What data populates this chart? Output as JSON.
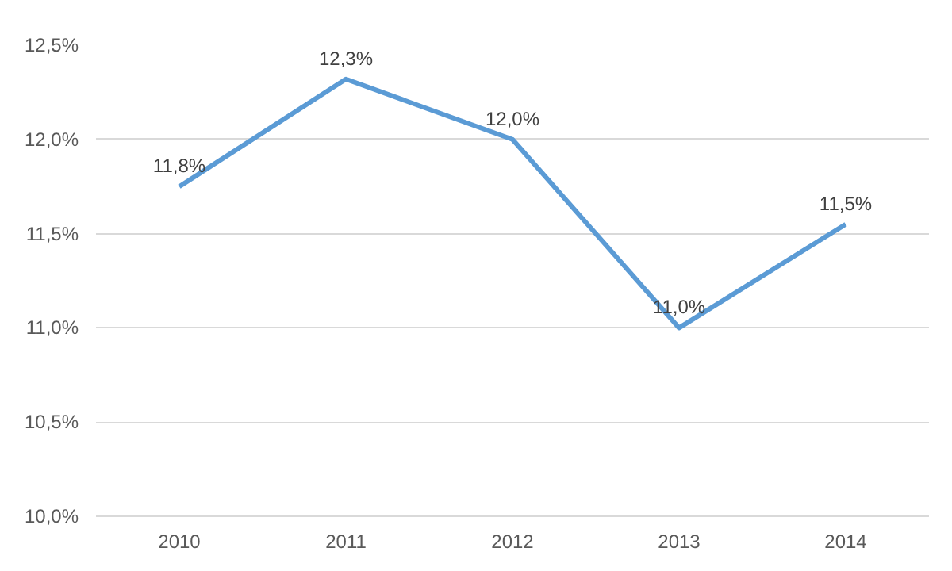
{
  "chart_data": {
    "type": "line",
    "categories": [
      "2010",
      "2011",
      "2012",
      "2013",
      "2014"
    ],
    "series": [
      {
        "color": "#5b9bd5",
        "values": [
          11.75,
          12.32,
          12.0,
          11.0,
          11.55
        ],
        "value_labels": [
          "11,8%",
          "12,3%",
          "12,0%",
          "11,0%",
          "11,5%"
        ]
      }
    ],
    "ylim": [
      10.0,
      12.5
    ],
    "yticks": [
      {
        "value": 10.0,
        "label": "10,0%"
      },
      {
        "value": 10.5,
        "label": "10,5%"
      },
      {
        "value": 11.0,
        "label": "11,0%"
      },
      {
        "value": 11.5,
        "label": "11,5%"
      },
      {
        "value": 12.0,
        "label": "12,0%"
      },
      {
        "value": 12.5,
        "label": "12,5%"
      }
    ],
    "grid": "y",
    "marker": "none",
    "line_style": "solid"
  }
}
